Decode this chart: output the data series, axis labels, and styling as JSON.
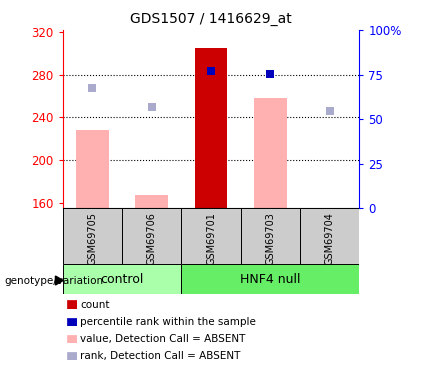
{
  "title": "GDS1507 / 1416629_at",
  "samples": [
    "GSM69705",
    "GSM69706",
    "GSM69701",
    "GSM69703",
    "GSM69704"
  ],
  "ylim_left": [
    155,
    322
  ],
  "ylim_right": [
    0,
    100
  ],
  "yticks_left": [
    160,
    200,
    240,
    280,
    320
  ],
  "yticks_right": [
    0,
    25,
    50,
    75,
    100
  ],
  "ytick_right_labels": [
    "0",
    "25",
    "50",
    "75",
    "100%"
  ],
  "bar_values_absent": [
    228,
    167,
    null,
    258,
    null
  ],
  "bar_values_present": [
    null,
    null,
    305,
    null,
    null
  ],
  "bar_color_absent": "#ffb0b0",
  "bar_color_present": "#cc0000",
  "dot_rank_absent": [
    268,
    250,
    null,
    null,
    246
  ],
  "dot_rank_present": [
    null,
    null,
    284,
    281,
    null
  ],
  "dot_color_absent": "#aaaacc",
  "dot_color_present": "#0000bb",
  "groups_info": [
    {
      "label": "control",
      "start": 0,
      "end": 2,
      "color": "#aaffaa"
    },
    {
      "label": "HNF4 null",
      "start": 2,
      "end": 5,
      "color": "#66ee66"
    }
  ],
  "group_label": "genotype/variation",
  "legend_items": [
    {
      "label": "count",
      "color": "#cc0000"
    },
    {
      "label": "percentile rank within the sample",
      "color": "#0000bb"
    },
    {
      "label": "value, Detection Call = ABSENT",
      "color": "#ffb0b0"
    },
    {
      "label": "rank, Detection Call = ABSENT",
      "color": "#aaaacc"
    }
  ],
  "gridlines": [
    200,
    240,
    280
  ]
}
